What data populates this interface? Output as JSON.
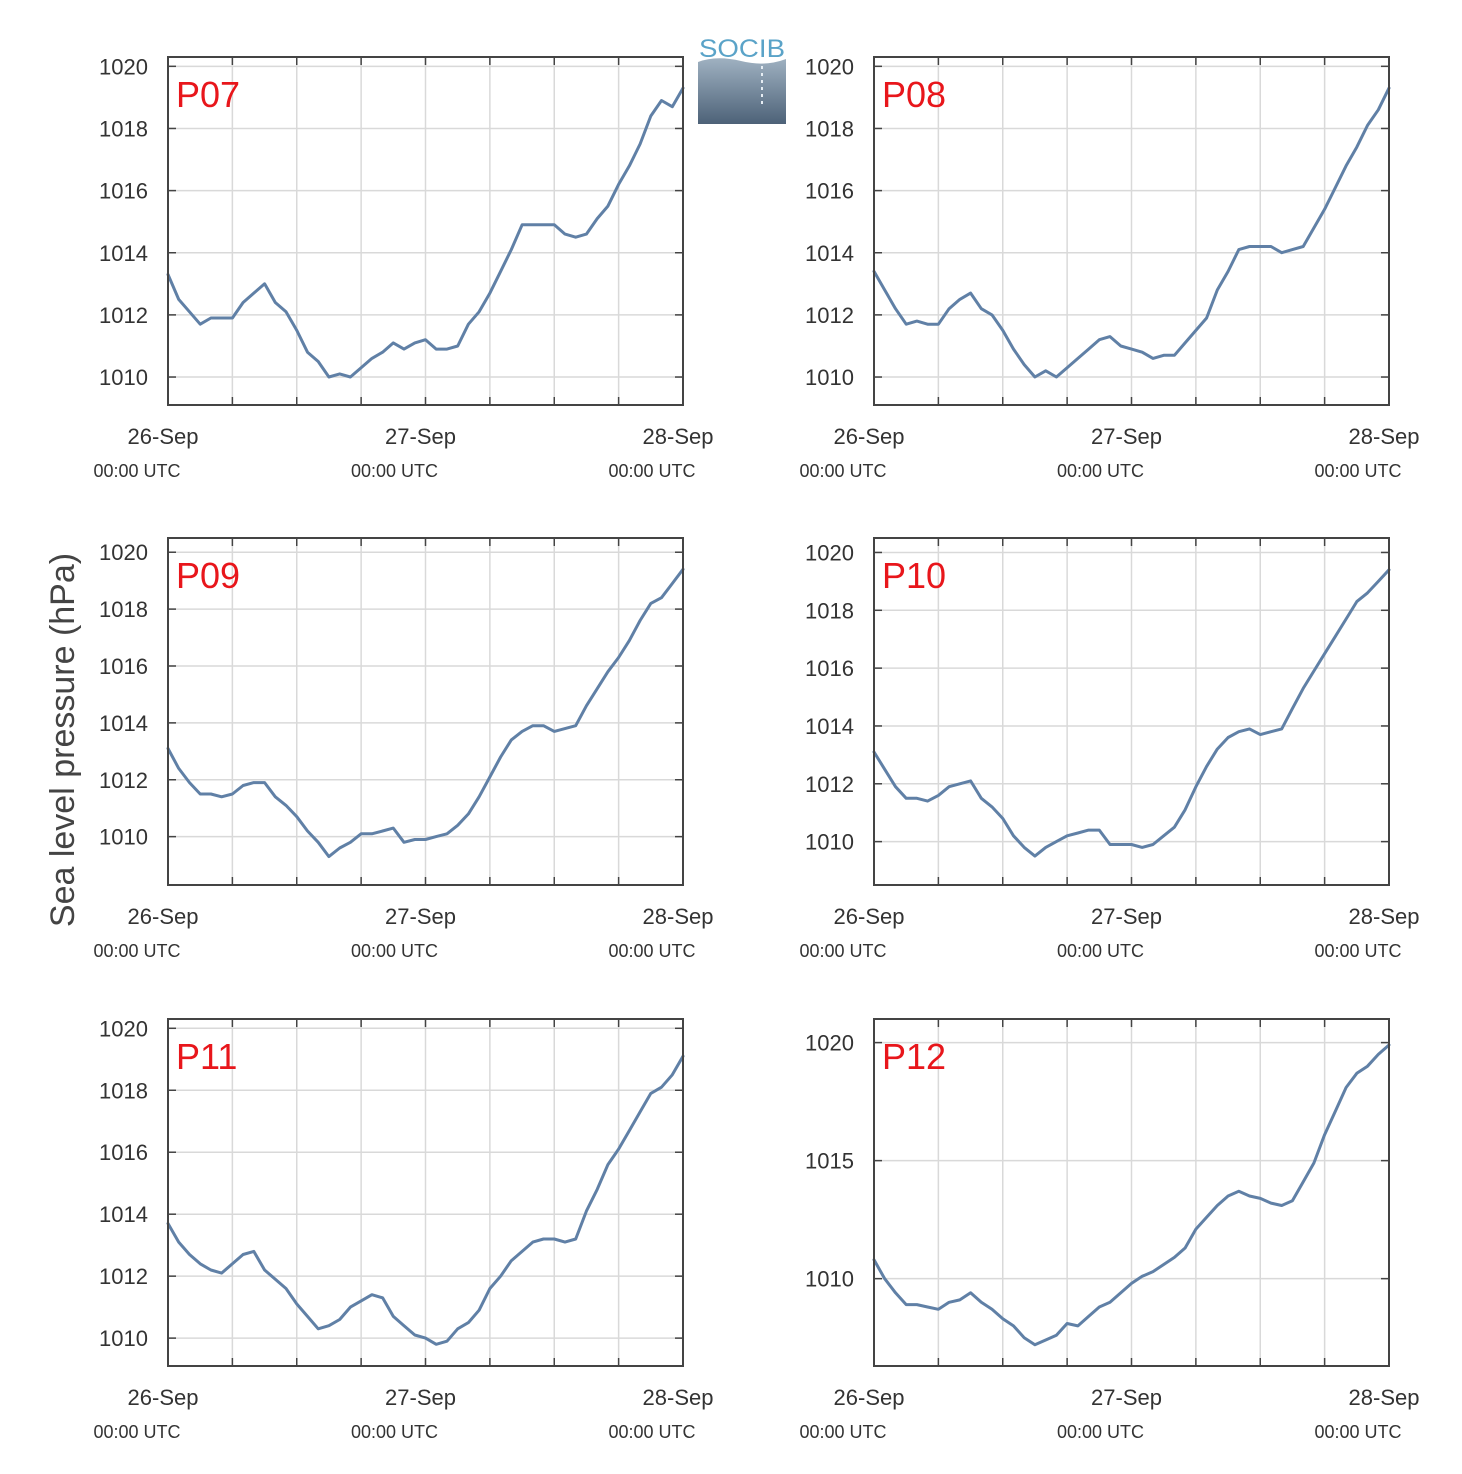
{
  "figure": {
    "ylabel": "Sea level pressure (hPa)",
    "logo_text": "SOCIB"
  },
  "colors": {
    "line": "#6080a6",
    "title": "#e8161b",
    "grid": "#d9d9d9",
    "axis": "#444444"
  },
  "x_axis": {
    "range": [
      "2024-09-26T00:00Z",
      "2024-09-28T00:00Z"
    ],
    "ticks": [
      {
        "date": "26-Sep",
        "time": "00:00 UTC"
      },
      {
        "date": "27-Sep",
        "time": "00:00 UTC"
      },
      {
        "date": "28-Sep",
        "time": "00:00 UTC"
      }
    ]
  },
  "chart_data": [
    {
      "type": "line",
      "title": "P07",
      "ylim": [
        1009.1,
        1020.3
      ],
      "yticks": [
        1010,
        1012,
        1014,
        1016,
        1018,
        1020
      ],
      "grid": true,
      "series": [
        {
          "x_hours": [
            0,
            1,
            2,
            3,
            4,
            5,
            6,
            7,
            8,
            9,
            10,
            11,
            12,
            13,
            14,
            15,
            16,
            17,
            18,
            19,
            20,
            21,
            22,
            23,
            24,
            25,
            26,
            27,
            28,
            29,
            30,
            31,
            32,
            33,
            34,
            35,
            36,
            37,
            38,
            39,
            40,
            41,
            42,
            43,
            44,
            45,
            46,
            47,
            48
          ],
          "values": [
            1013.3,
            1012.5,
            1012.1,
            1011.7,
            1011.9,
            1011.9,
            1011.9,
            1012.4,
            1012.7,
            1013.0,
            1012.4,
            1012.1,
            1011.5,
            1010.8,
            1010.5,
            1010.0,
            1010.1,
            1010.0,
            1010.3,
            1010.6,
            1010.8,
            1011.1,
            1010.9,
            1011.1,
            1011.2,
            1010.9,
            1010.9,
            1011.0,
            1011.7,
            1012.1,
            1012.7,
            1013.4,
            1014.1,
            1014.9,
            1014.9,
            1014.9,
            1014.9,
            1014.6,
            1014.5,
            1014.6,
            1015.1,
            1015.5,
            1016.2,
            1016.8,
            1017.5,
            1018.4,
            1018.9,
            1018.7,
            1019.3
          ]
        }
      ]
    },
    {
      "type": "line",
      "title": "P08",
      "ylim": [
        1009.1,
        1020.3
      ],
      "yticks": [
        1010,
        1012,
        1014,
        1016,
        1018,
        1020
      ],
      "grid": true,
      "series": [
        {
          "x_hours": [
            0,
            1,
            2,
            3,
            4,
            5,
            6,
            7,
            8,
            9,
            10,
            11,
            12,
            13,
            14,
            15,
            16,
            17,
            18,
            19,
            20,
            21,
            22,
            23,
            24,
            25,
            26,
            27,
            28,
            29,
            30,
            31,
            32,
            33,
            34,
            35,
            36,
            37,
            38,
            39,
            40,
            41,
            42,
            43,
            44,
            45,
            46,
            47,
            48
          ],
          "values": [
            1013.4,
            1012.8,
            1012.2,
            1011.7,
            1011.8,
            1011.7,
            1011.7,
            1012.2,
            1012.5,
            1012.7,
            1012.2,
            1012.0,
            1011.5,
            1010.9,
            1010.4,
            1010.0,
            1010.2,
            1010.0,
            1010.3,
            1010.6,
            1010.9,
            1011.2,
            1011.3,
            1011.0,
            1010.9,
            1010.8,
            1010.6,
            1010.7,
            1010.7,
            1011.1,
            1011.5,
            1011.9,
            1012.8,
            1013.4,
            1014.1,
            1014.2,
            1014.2,
            1014.2,
            1014.0,
            1014.1,
            1014.2,
            1014.8,
            1015.4,
            1016.1,
            1016.8,
            1017.4,
            1018.1,
            1018.6,
            1019.3
          ]
        }
      ]
    },
    {
      "type": "line",
      "title": "P09",
      "ylim": [
        1008.3,
        1020.5
      ],
      "yticks": [
        1010,
        1012,
        1014,
        1016,
        1018,
        1020
      ],
      "grid": true,
      "series": [
        {
          "x_hours": [
            0,
            1,
            2,
            3,
            4,
            5,
            6,
            7,
            8,
            9,
            10,
            11,
            12,
            13,
            14,
            15,
            16,
            17,
            18,
            19,
            20,
            21,
            22,
            23,
            24,
            25,
            26,
            27,
            28,
            29,
            30,
            31,
            32,
            33,
            34,
            35,
            36,
            37,
            38,
            39,
            40,
            41,
            42,
            43,
            44,
            45,
            46,
            47,
            48
          ],
          "values": [
            1013.1,
            1012.4,
            1011.9,
            1011.5,
            1011.5,
            1011.4,
            1011.5,
            1011.8,
            1011.9,
            1011.9,
            1011.4,
            1011.1,
            1010.7,
            1010.2,
            1009.8,
            1009.3,
            1009.6,
            1009.8,
            1010.1,
            1010.1,
            1010.2,
            1010.3,
            1009.8,
            1009.9,
            1009.9,
            1010.0,
            1010.1,
            1010.4,
            1010.8,
            1011.4,
            1012.1,
            1012.8,
            1013.4,
            1013.7,
            1013.9,
            1013.9,
            1013.7,
            1013.8,
            1013.9,
            1014.6,
            1015.2,
            1015.8,
            1016.3,
            1016.9,
            1017.6,
            1018.2,
            1018.4,
            1018.9,
            1019.4
          ]
        }
      ]
    },
    {
      "type": "line",
      "title": "P10",
      "ylim": [
        1008.5,
        1020.5
      ],
      "yticks": [
        1010,
        1012,
        1014,
        1016,
        1018,
        1020
      ],
      "grid": true,
      "series": [
        {
          "x_hours": [
            0,
            1,
            2,
            3,
            4,
            5,
            6,
            7,
            8,
            9,
            10,
            11,
            12,
            13,
            14,
            15,
            16,
            17,
            18,
            19,
            20,
            21,
            22,
            23,
            24,
            25,
            26,
            27,
            28,
            29,
            30,
            31,
            32,
            33,
            34,
            35,
            36,
            37,
            38,
            39,
            40,
            41,
            42,
            43,
            44,
            45,
            46,
            47,
            48
          ],
          "values": [
            1013.1,
            1012.5,
            1011.9,
            1011.5,
            1011.5,
            1011.4,
            1011.6,
            1011.9,
            1012.0,
            1012.1,
            1011.5,
            1011.2,
            1010.8,
            1010.2,
            1009.8,
            1009.5,
            1009.8,
            1010.0,
            1010.2,
            1010.3,
            1010.4,
            1010.4,
            1009.9,
            1009.9,
            1009.9,
            1009.8,
            1009.9,
            1010.2,
            1010.5,
            1011.1,
            1011.9,
            1012.6,
            1013.2,
            1013.6,
            1013.8,
            1013.9,
            1013.7,
            1013.8,
            1013.9,
            1014.6,
            1015.3,
            1015.9,
            1016.5,
            1017.1,
            1017.7,
            1018.3,
            1018.6,
            1019.0,
            1019.4
          ]
        }
      ]
    },
    {
      "type": "line",
      "title": "P11",
      "ylim": [
        1009.1,
        1020.3
      ],
      "yticks": [
        1010,
        1012,
        1014,
        1016,
        1018,
        1020
      ],
      "grid": true,
      "series": [
        {
          "x_hours": [
            0,
            1,
            2,
            3,
            4,
            5,
            6,
            7,
            8,
            9,
            10,
            11,
            12,
            13,
            14,
            15,
            16,
            17,
            18,
            19,
            20,
            21,
            22,
            23,
            24,
            25,
            26,
            27,
            28,
            29,
            30,
            31,
            32,
            33,
            34,
            35,
            36,
            37,
            38,
            39,
            40,
            41,
            42,
            43,
            44,
            45,
            46,
            47,
            48
          ],
          "values": [
            1013.7,
            1013.1,
            1012.7,
            1012.4,
            1012.2,
            1012.1,
            1012.4,
            1012.7,
            1012.8,
            1012.2,
            1011.9,
            1011.6,
            1011.1,
            1010.7,
            1010.3,
            1010.4,
            1010.6,
            1011.0,
            1011.2,
            1011.4,
            1011.3,
            1010.7,
            1010.4,
            1010.1,
            1010.0,
            1009.8,
            1009.9,
            1010.3,
            1010.5,
            1010.9,
            1011.6,
            1012.0,
            1012.5,
            1012.8,
            1013.1,
            1013.2,
            1013.2,
            1013.1,
            1013.2,
            1014.1,
            1014.8,
            1015.6,
            1016.1,
            1016.7,
            1017.3,
            1017.9,
            1018.1,
            1018.5,
            1019.1
          ]
        }
      ]
    },
    {
      "type": "line",
      "title": "P12",
      "ylim": [
        1006.3,
        1021.0
      ],
      "yticks": [
        1010,
        1015,
        1020
      ],
      "grid": true,
      "series": [
        {
          "x_hours": [
            0,
            1,
            2,
            3,
            4,
            5,
            6,
            7,
            8,
            9,
            10,
            11,
            12,
            13,
            14,
            15,
            16,
            17,
            18,
            19,
            20,
            21,
            22,
            23,
            24,
            25,
            26,
            27,
            28,
            29,
            30,
            31,
            32,
            33,
            34,
            35,
            36,
            37,
            38,
            39,
            40,
            41,
            42,
            43,
            44,
            45,
            46,
            47,
            48
          ],
          "values": [
            1010.8,
            1010.0,
            1009.4,
            1008.9,
            1008.9,
            1008.8,
            1008.7,
            1009.0,
            1009.1,
            1009.4,
            1009.0,
            1008.7,
            1008.3,
            1008.0,
            1007.5,
            1007.2,
            1007.4,
            1007.6,
            1008.1,
            1008.0,
            1008.4,
            1008.8,
            1009.0,
            1009.4,
            1009.8,
            1010.1,
            1010.3,
            1010.6,
            1010.9,
            1011.3,
            1012.1,
            1012.6,
            1013.1,
            1013.5,
            1013.7,
            1013.5,
            1013.4,
            1013.2,
            1013.1,
            1013.3,
            1014.1,
            1014.9,
            1016.1,
            1017.1,
            1018.1,
            1018.7,
            1019.0,
            1019.5,
            1019.9
          ]
        }
      ]
    }
  ]
}
